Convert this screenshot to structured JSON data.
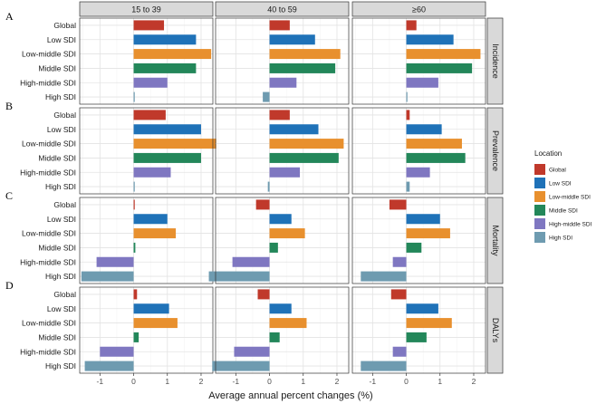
{
  "chart_data": {
    "type": "bar",
    "orientation": "horizontal",
    "xlabel": "Average annual percent changes (%)",
    "columns": [
      "15 to 39",
      "40 to 59",
      "≥60"
    ],
    "rows": [
      "Incidence",
      "Prevalence",
      "Mortality",
      "DALYs"
    ],
    "row_letters": [
      "A",
      "B",
      "C",
      "D"
    ],
    "categories": [
      "Global",
      "Low SDI",
      "Low-middle SDI",
      "Middle SDI",
      "High-middle SDI",
      "High SDI"
    ],
    "colors": [
      "#c0392b",
      "#1f72b8",
      "#e8902e",
      "#23875a",
      "#7f77c1",
      "#6e9bb0"
    ],
    "xlim": [
      -1.6,
      2.35
    ],
    "ticks": [
      -1,
      0,
      1,
      2
    ],
    "tick_labels": [
      "-1",
      "0",
      "1",
      "2"
    ],
    "legend": {
      "title": "Location",
      "entries": [
        "Global",
        "Low SDI",
        "Low-middle SDI",
        "Middle SDI",
        "High-middle SDI",
        "High SDI"
      ]
    },
    "values": {
      "Incidence": {
        "15 to 39": [
          0.9,
          1.85,
          2.3,
          1.85,
          1.0,
          0.02
        ],
        "40 to 59": [
          0.6,
          1.35,
          2.1,
          1.95,
          0.8,
          -0.2
        ],
        "≥60": [
          0.3,
          1.4,
          2.2,
          1.95,
          0.95,
          0.02
        ]
      },
      "Prevalence": {
        "15 to 39": [
          0.95,
          2.0,
          2.45,
          2.0,
          1.1,
          0.02
        ],
        "40 to 59": [
          0.6,
          1.45,
          2.2,
          2.05,
          0.9,
          -0.05
        ],
        "≥60": [
          0.1,
          1.05,
          1.65,
          1.75,
          0.7,
          0.1
        ]
      },
      "Mortality": {
        "15 to 39": [
          0.02,
          1.0,
          1.25,
          0.05,
          -1.1,
          -1.55
        ],
        "40 to 59": [
          -0.4,
          0.65,
          1.05,
          0.25,
          -1.1,
          -1.8
        ],
        "≥60": [
          -0.5,
          1.0,
          1.3,
          0.45,
          -0.4,
          -1.35
        ]
      },
      "DALYs": {
        "15 to 39": [
          0.1,
          1.05,
          1.3,
          0.15,
          -1.0,
          -1.45
        ],
        "40 to 59": [
          -0.35,
          0.65,
          1.1,
          0.3,
          -1.05,
          -1.7
        ],
        "≥60": [
          -0.45,
          0.95,
          1.35,
          0.6,
          -0.4,
          -1.35
        ]
      }
    }
  }
}
